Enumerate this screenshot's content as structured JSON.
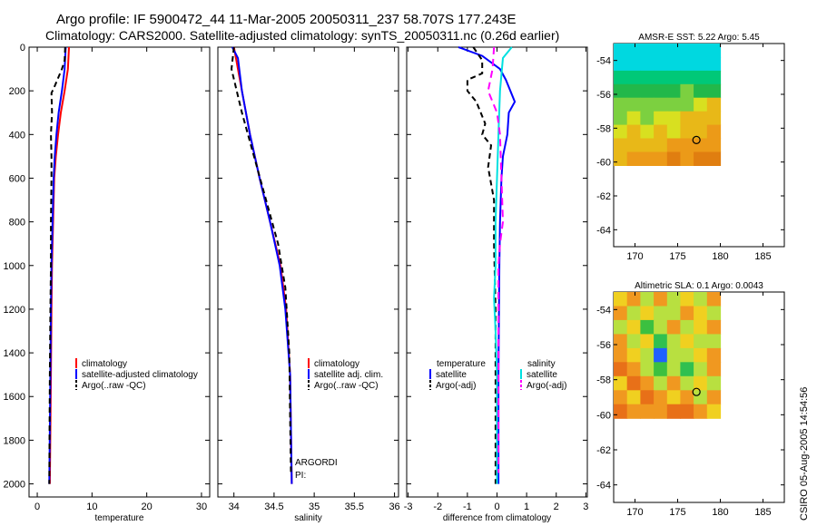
{
  "header": {
    "title_line1": "Argo profile: IF 5900472_44 11-Mar-2005 20050311_237 58.707S 177.243E",
    "title_line2": "Climatology: CARS2000. Satellite-adjusted climatology: synTS_20050311.nc (0.26d earlier)"
  },
  "side_stamp": "CSIRO 05-Aug-2005 14:54:56",
  "colors": {
    "red": "#ff0000",
    "blue": "#0000ff",
    "black": "#000000",
    "cyan": "#00e0e0",
    "magenta": "#ff00ff"
  },
  "chart_data": [
    {
      "id": "temperature",
      "type": "line",
      "xlabel": "temperature",
      "ylabel": "depth",
      "xlim": [
        -1.5,
        31.5
      ],
      "ylim": [
        0,
        2060
      ],
      "xticks": [
        0,
        10,
        20,
        30
      ],
      "yticks": [
        0,
        200,
        400,
        600,
        800,
        1000,
        1200,
        1400,
        1600,
        1800,
        2000
      ],
      "legend": [
        "climatology",
        "satellite-adjusted climatology",
        "Argo(..raw -QC)"
      ],
      "series": [
        {
          "name": "climatology",
          "color": "red",
          "dash": "",
          "points": [
            [
              5.8,
              0
            ],
            [
              5.6,
              100
            ],
            [
              5.0,
              200
            ],
            [
              4.3,
              300
            ],
            [
              3.8,
              400
            ],
            [
              3.4,
              500
            ],
            [
              3.1,
              600
            ],
            [
              2.9,
              800
            ],
            [
              2.7,
              1000
            ],
            [
              2.6,
              1200
            ],
            [
              2.5,
              1500
            ],
            [
              2.3,
              2000
            ]
          ]
        },
        {
          "name": "satellite-adjusted climatology",
          "color": "blue",
          "dash": "",
          "points": [
            [
              5.2,
              0
            ],
            [
              5.0,
              100
            ],
            [
              4.5,
              200
            ],
            [
              3.9,
              300
            ],
            [
              3.5,
              400
            ],
            [
              3.2,
              500
            ],
            [
              3.0,
              600
            ],
            [
              2.8,
              800
            ],
            [
              2.6,
              1000
            ],
            [
              2.5,
              1200
            ],
            [
              2.4,
              1500
            ],
            [
              2.2,
              2000
            ]
          ]
        },
        {
          "name": "Argo(..raw -QC)",
          "color": "black",
          "dash": "6,4",
          "points": [
            [
              5.1,
              0
            ],
            [
              5.0,
              60
            ],
            [
              4.5,
              100
            ],
            [
              3.0,
              190
            ],
            [
              2.6,
              210
            ],
            [
              2.7,
              300
            ],
            [
              2.5,
              400
            ],
            [
              2.6,
              500
            ],
            [
              2.6,
              600
            ],
            [
              2.5,
              800
            ],
            [
              2.5,
              1000
            ],
            [
              2.4,
              1200
            ],
            [
              2.3,
              1500
            ],
            [
              2.2,
              2000
            ]
          ]
        }
      ]
    },
    {
      "id": "salinity",
      "type": "line",
      "xlabel": "salinity",
      "ylabel": "depth",
      "xlim": [
        33.8,
        36.05
      ],
      "ylim": [
        0,
        2060
      ],
      "xticks": [
        34,
        34.5,
        35,
        35.5,
        36
      ],
      "yticks": [
        0,
        200,
        400,
        600,
        800,
        1000,
        1200,
        1400,
        1600,
        1800,
        2000
      ],
      "legend": [
        "climatology",
        "satellite adj. clim.",
        "Argo(..raw -QC)"
      ],
      "annotation": [
        "ARGORDI",
        "PI:"
      ],
      "series": [
        {
          "name": "climatology",
          "color": "red",
          "dash": "",
          "points": [
            [
              34.0,
              0
            ],
            [
              34.1,
              200
            ],
            [
              34.2,
              400
            ],
            [
              34.32,
              600
            ],
            [
              34.45,
              800
            ],
            [
              34.58,
              1000
            ],
            [
              34.65,
              1200
            ],
            [
              34.7,
              1500
            ],
            [
              34.72,
              2000
            ]
          ]
        },
        {
          "name": "satellite adj. clim.",
          "color": "blue",
          "dash": "",
          "points": [
            [
              33.98,
              0
            ],
            [
              34.05,
              50
            ],
            [
              34.1,
              200
            ],
            [
              34.2,
              400
            ],
            [
              34.32,
              600
            ],
            [
              34.45,
              800
            ],
            [
              34.57,
              1000
            ],
            [
              34.64,
              1200
            ],
            [
              34.7,
              1500
            ],
            [
              34.72,
              2000
            ]
          ]
        },
        {
          "name": "Argo(..raw -QC)",
          "color": "black",
          "dash": "6,4",
          "points": [
            [
              34.0,
              0
            ],
            [
              33.97,
              100
            ],
            [
              34.1,
              300
            ],
            [
              34.25,
              500
            ],
            [
              34.4,
              700
            ],
            [
              34.55,
              900
            ],
            [
              34.64,
              1100
            ],
            [
              34.69,
              1400
            ],
            [
              34.7,
              1700
            ],
            [
              34.71,
              1950
            ]
          ]
        }
      ]
    },
    {
      "id": "difference",
      "type": "line",
      "xlabel": "difference from climatology",
      "ylabel": "depth",
      "xlim": [
        -3.05,
        3.05
      ],
      "ylim": [
        0,
        2060
      ],
      "xticks": [
        -3,
        -2,
        -1,
        0,
        1,
        2,
        3
      ],
      "yticks": [
        0,
        200,
        400,
        600,
        800,
        1000,
        1200,
        1400,
        1600,
        1800,
        2000
      ],
      "legend_left_title": "temperature",
      "legend_right_title": "salinity",
      "legend": [
        "satellite",
        "Argo(-adj)",
        "satellite",
        "Argo(-adj)"
      ],
      "series": [
        {
          "name": "temperature satellite",
          "color": "blue",
          "dash": "",
          "points": [
            [
              -1.3,
              0
            ],
            [
              -0.5,
              40
            ],
            [
              0.1,
              100
            ],
            [
              0.3,
              150
            ],
            [
              0.6,
              250
            ],
            [
              0.4,
              300
            ],
            [
              0.35,
              400
            ],
            [
              0.2,
              500
            ],
            [
              0.15,
              600
            ],
            [
              0.1,
              800
            ],
            [
              0.08,
              1000
            ],
            [
              0.05,
              1500
            ],
            [
              0.05,
              2000
            ]
          ]
        },
        {
          "name": "temperature Argo(-adj)",
          "color": "black",
          "dash": "6,4",
          "points": [
            [
              -0.8,
              0
            ],
            [
              -0.5,
              60
            ],
            [
              -0.5,
              120
            ],
            [
              -1.0,
              150
            ],
            [
              -1.0,
              200
            ],
            [
              -0.7,
              250
            ],
            [
              -0.4,
              350
            ],
            [
              -0.5,
              400
            ],
            [
              -0.2,
              450
            ],
            [
              -0.3,
              550
            ],
            [
              -0.1,
              700
            ],
            [
              -0.1,
              900
            ],
            [
              -0.05,
              1200
            ],
            [
              -0.05,
              1500
            ],
            [
              -0.05,
              2000
            ]
          ]
        },
        {
          "name": "salinity satellite",
          "color": "cyan",
          "dash": "",
          "points": [
            [
              0.5,
              0
            ],
            [
              0.2,
              50
            ],
            [
              0.1,
              200
            ],
            [
              0.05,
              400
            ],
            [
              0.0,
              600
            ],
            [
              -0.05,
              800
            ],
            [
              -0.05,
              1000
            ],
            [
              -0.1,
              1150
            ],
            [
              -0.05,
              1300
            ],
            [
              0.0,
              1500
            ],
            [
              0.0,
              2000
            ]
          ]
        },
        {
          "name": "salinity Argo(-adj)",
          "color": "magenta",
          "dash": "8,5",
          "points": [
            [
              -0.1,
              0
            ],
            [
              -0.15,
              100
            ],
            [
              -0.3,
              200
            ],
            [
              0.0,
              300
            ],
            [
              0.1,
              400
            ],
            [
              0.15,
              600
            ],
            [
              0.2,
              800
            ],
            [
              0.1,
              900
            ],
            [
              0.05,
              1000
            ],
            [
              0.05,
              1200
            ],
            [
              0.05,
              1400
            ],
            [
              0.05,
              1600
            ],
            [
              0.05,
              1800
            ],
            [
              0.05,
              1950
            ]
          ]
        }
      ]
    },
    {
      "id": "sst_map",
      "type": "heatmap",
      "title": "AMSR-E SST: 5.22 Argo: 5.45",
      "xlim": [
        167.5,
        187.5
      ],
      "ylim": [
        -65,
        -53
      ],
      "xticks": [
        170,
        175,
        180,
        185
      ],
      "yticks": [
        -54,
        -56,
        -58,
        -60,
        -62,
        -64
      ],
      "region": {
        "lon": [
          167.5,
          180
        ],
        "lat": [
          -60.2,
          -53
        ]
      },
      "float": {
        "lon": 177.2,
        "lat": -58.7
      },
      "field": [
        [
          4.9,
          5.2,
          5.0,
          5.3,
          5.1,
          4.9,
          5.0,
          5.2
        ],
        [
          5.3,
          5.1,
          5.5,
          5.2,
          5.4,
          5.0,
          5.3,
          5.1
        ],
        [
          5.8,
          6.0,
          5.7,
          6.1,
          5.9,
          6.2,
          5.8,
          6.0
        ],
        [
          6.4,
          6.6,
          6.5,
          6.8,
          6.6,
          7.0,
          6.7,
          6.9
        ],
        [
          7.0,
          7.2,
          7.1,
          7.4,
          7.6,
          7.3,
          8.2,
          8.4
        ],
        [
          7.4,
          7.8,
          7.5,
          8.0,
          7.9,
          8.4,
          8.6,
          8.8
        ],
        [
          8.0,
          8.4,
          8.2,
          8.5,
          8.3,
          8.6,
          8.9,
          9.1
        ],
        [
          8.4,
          8.8,
          8.7,
          9.0,
          9.3,
          9.2,
          9.5,
          9.6
        ],
        [
          8.8,
          9.1,
          9.3,
          9.6,
          9.8,
          9.7,
          10.2,
          10.4
        ]
      ]
    },
    {
      "id": "sla_map",
      "type": "heatmap",
      "title": "Altimetric SLA: 0.1 Argo: 0.0043",
      "xlim": [
        167.5,
        187.5
      ],
      "ylim": [
        -65,
        -53
      ],
      "xticks": [
        170,
        175,
        180,
        185
      ],
      "yticks": [
        -54,
        -56,
        -58,
        -60,
        -62,
        -64
      ],
      "region": {
        "lon": [
          167.5,
          180
        ],
        "lat": [
          -60.2,
          -53
        ]
      },
      "float": {
        "lon": 177.2,
        "lat": -58.7
      },
      "field": [
        [
          0.4,
          0.6,
          0.3,
          0.5,
          0.2,
          0.4,
          0.3,
          0.5
        ],
        [
          0.5,
          0.2,
          0.4,
          0.2,
          0.3,
          0.5,
          0.4,
          0.2
        ],
        [
          0.3,
          0.4,
          0.1,
          0.3,
          0.5,
          0.2,
          0.4,
          0.6
        ],
        [
          0.6,
          0.3,
          0.4,
          -0.2,
          0.3,
          0.4,
          0.2,
          0.3
        ],
        [
          0.5,
          0.4,
          0.3,
          -0.5,
          0.2,
          0.3,
          0.4,
          0.5
        ],
        [
          0.7,
          0.5,
          0.3,
          0.1,
          0.3,
          -0.2,
          0.3,
          0.5
        ],
        [
          0.4,
          0.8,
          0.5,
          0.3,
          0.5,
          0.2,
          0.4,
          0.3
        ],
        [
          0.6,
          0.4,
          0.7,
          0.5,
          0.4,
          0.6,
          0.3,
          0.5
        ],
        [
          0.7,
          0.6,
          0.5,
          0.6,
          0.7,
          0.8,
          0.5,
          0.4
        ]
      ]
    }
  ]
}
